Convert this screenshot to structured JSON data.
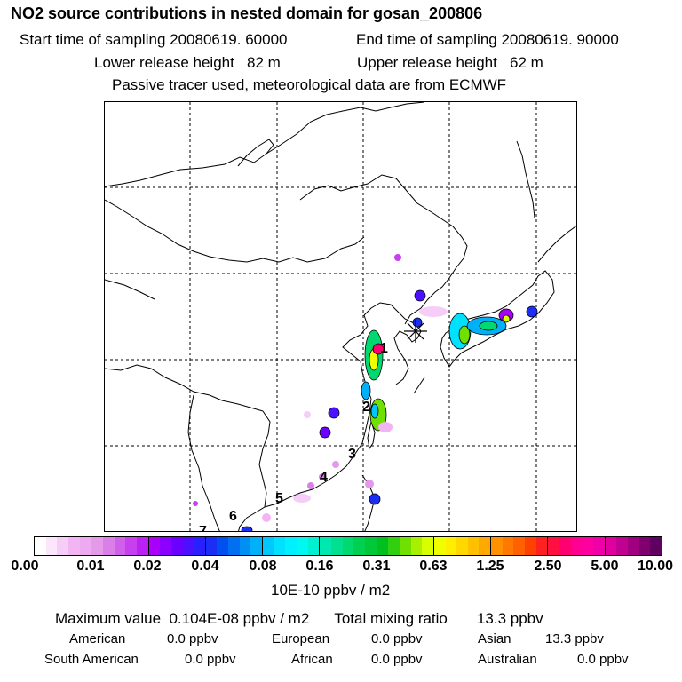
{
  "header": {
    "title": "NO2 source contributions in nested domain for gosan_200806",
    "start_label": "Start time of sampling 20080619. 60000",
    "end_label": "End time of sampling 20080619. 90000",
    "lower_label": "Lower release height   82 m",
    "upper_label": "Upper release height   62 m",
    "tracer_note": "Passive tracer used, meteorological data are from ECMWF"
  },
  "map": {
    "receptor_marker": "asterisk-icon",
    "source_labels": [
      "1",
      "2",
      "3",
      "4",
      "5",
      "6",
      "7"
    ]
  },
  "colorbar": {
    "ticks": [
      "0.00",
      "0.01",
      "0.02",
      "0.04",
      "0.08",
      "0.16",
      "0.31",
      "0.63",
      "1.25",
      "2.50",
      "5.00",
      "10.00"
    ],
    "segments": [
      [
        "#ffffff",
        "#fbe6fb",
        "#f6cdf6",
        "#f2b4f2",
        "#edaaf0"
      ],
      [
        "#e49ae8",
        "#da7ee8",
        "#d060ec",
        "#c640f0",
        "#bb20f4"
      ],
      [
        "#a800f8",
        "#8c00ff",
        "#6a00ff",
        "#4a10ff",
        "#2a20ff"
      ],
      [
        "#1a2ef5",
        "#0050f0",
        "#0070f0",
        "#0090f4",
        "#00b0f8"
      ],
      [
        "#00c8fc",
        "#00e0ff",
        "#00f0ff",
        "#00f8f0",
        "#00f0d0"
      ],
      [
        "#00e8b0",
        "#00e090",
        "#00d870",
        "#00d050",
        "#00c838"
      ],
      [
        "#00c020",
        "#30d010",
        "#70e000",
        "#a8f000",
        "#d8ff00"
      ],
      [
        "#f0ff00",
        "#ffee00",
        "#ffd800",
        "#ffc000",
        "#ffa800"
      ],
      [
        "#ff9000",
        "#ff7800",
        "#ff6000",
        "#ff4000",
        "#ff2020"
      ],
      [
        "#ff1040",
        "#ff0070",
        "#ff0090",
        "#ff00a0",
        "#f000a8"
      ],
      [
        "#e000a0",
        "#c00090",
        "#a00080",
        "#800070",
        "#600060"
      ]
    ],
    "units": "10E-10 ppbv / m2"
  },
  "summary": {
    "max_line": "Maximum value  0.104E-08 ppbv / m2      Total mixing ratio       13.3 ppbv",
    "american": "American",
    "american_value": "0.0 ppbv",
    "european": "European",
    "european_value": "0.0 ppbv",
    "asian": "Asian",
    "asian_value": "13.3 ppbv",
    "south_american": "South American",
    "south_american_value": "0.0 ppbv",
    "african": "African",
    "african_value": "0.0 ppbv",
    "australian": "Australian",
    "australian_value": "0.0 ppbv"
  }
}
